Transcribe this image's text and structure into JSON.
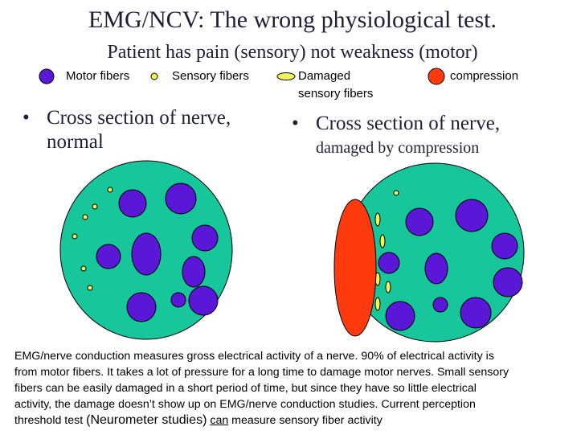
{
  "title": "EMG/NCV: The wrong physiological test.",
  "subtitle": "Patient has pain (sensory) not weakness (motor)",
  "legend": {
    "motor": "Motor fibers",
    "sensory": "Sensory fibers",
    "damaged_line1": "Damaged",
    "damaged_line2": "sensory fibers",
    "compression": "compression"
  },
  "left_bullet": {
    "bullet": "•",
    "line1": "Cross section of nerve,",
    "line2": "normal"
  },
  "right_bullet": {
    "bullet": "•",
    "line1": "Cross section of nerve,",
    "line2": "damaged by compression"
  },
  "body": {
    "line1": "EMG/nerve conduction measures gross electrical activity of a nerve. 90% of electrical activity is",
    "line2": "from motor fibers. It takes a lot of pressure for a long time to damage motor nerves. Small sensory",
    "line3": "fibers can be easily damaged in a short period of time, but since they have so little electrical",
    "line4": "activity, the damage doesn’t show up on EMG/nerve conduction studies. Current perception",
    "line5_a": "threshold test ",
    "line5_b": "(Neurometer studies)",
    "line5_c": "can",
    "line5_d": " measure sensory fiber activity"
  },
  "colors": {
    "nerve": "#17c69b",
    "motor": "#5a17d8",
    "sensory": "#f3f35a",
    "damaged": "#f3f35a",
    "compression": "#ff3a0c",
    "title": "#1f1f3a"
  }
}
